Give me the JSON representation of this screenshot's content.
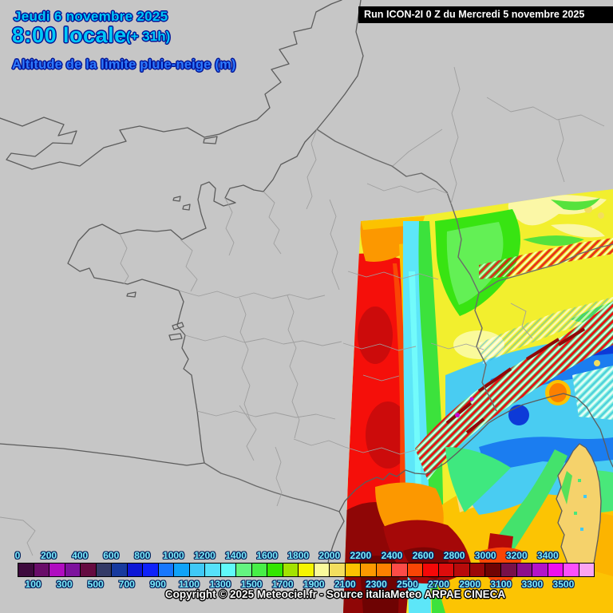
{
  "header": {
    "date_line": "Jeudi 6 novembre 2025",
    "time_line": "8:00 locale",
    "offset": "(+ 31h)",
    "subtitle": "Altitude de la limite pluie-neige (m)",
    "run_info": "Run ICON-2I 0 Z du Mercredi 5 novembre 2025"
  },
  "legend": {
    "unit": "m",
    "top_labels": [
      "0",
      "200",
      "400",
      "600",
      "800",
      "1000",
      "1200",
      "1400",
      "1600",
      "1800",
      "2000",
      "2200",
      "2400",
      "2600",
      "2800",
      "3000",
      "3200",
      "3400"
    ],
    "bottom_labels": [
      "100",
      "300",
      "500",
      "700",
      "900",
      "1100",
      "1300",
      "1500",
      "1700",
      "1900",
      "2100",
      "2300",
      "2500",
      "2700",
      "2900",
      "3100",
      "3300",
      "3500"
    ],
    "colors": [
      "#3d0a3d",
      "#690d69",
      "#b00cc0",
      "#7d129d",
      "#650b40",
      "#333a66",
      "#173a9e",
      "#0d17d6",
      "#0f22fa",
      "#1777fd",
      "#10a3f8",
      "#3fc9f7",
      "#55e1fa",
      "#60fafa",
      "#63f580",
      "#47ef47",
      "#33e600",
      "#a3e300",
      "#f5f500",
      "#fafa9b",
      "#f3de5e",
      "#fcc200",
      "#fc9800",
      "#fc8000",
      "#fb4b47",
      "#fa4505",
      "#f50808",
      "#dd0c0c",
      "#b80b0b",
      "#9c0808",
      "#700404",
      "#78104a",
      "#8d0f8d",
      "#b313c9",
      "#ee0fee",
      "#fb4ffb",
      "#fba4f2"
    ]
  },
  "footer": {
    "copyright": "Copyright © 2025 Meteociel.fr - Source italiaMeteo ARPAE CINECA"
  },
  "map": {
    "background": "#c6c6c6",
    "coast_color": "#5c5c5c",
    "border_color": "#6a6a6a",
    "department_color": "#9f9f9f",
    "title_cyan": "#00c9f8",
    "subtitle_blue": "#2e7bfe",
    "legend_label_color": "#7deefc"
  }
}
